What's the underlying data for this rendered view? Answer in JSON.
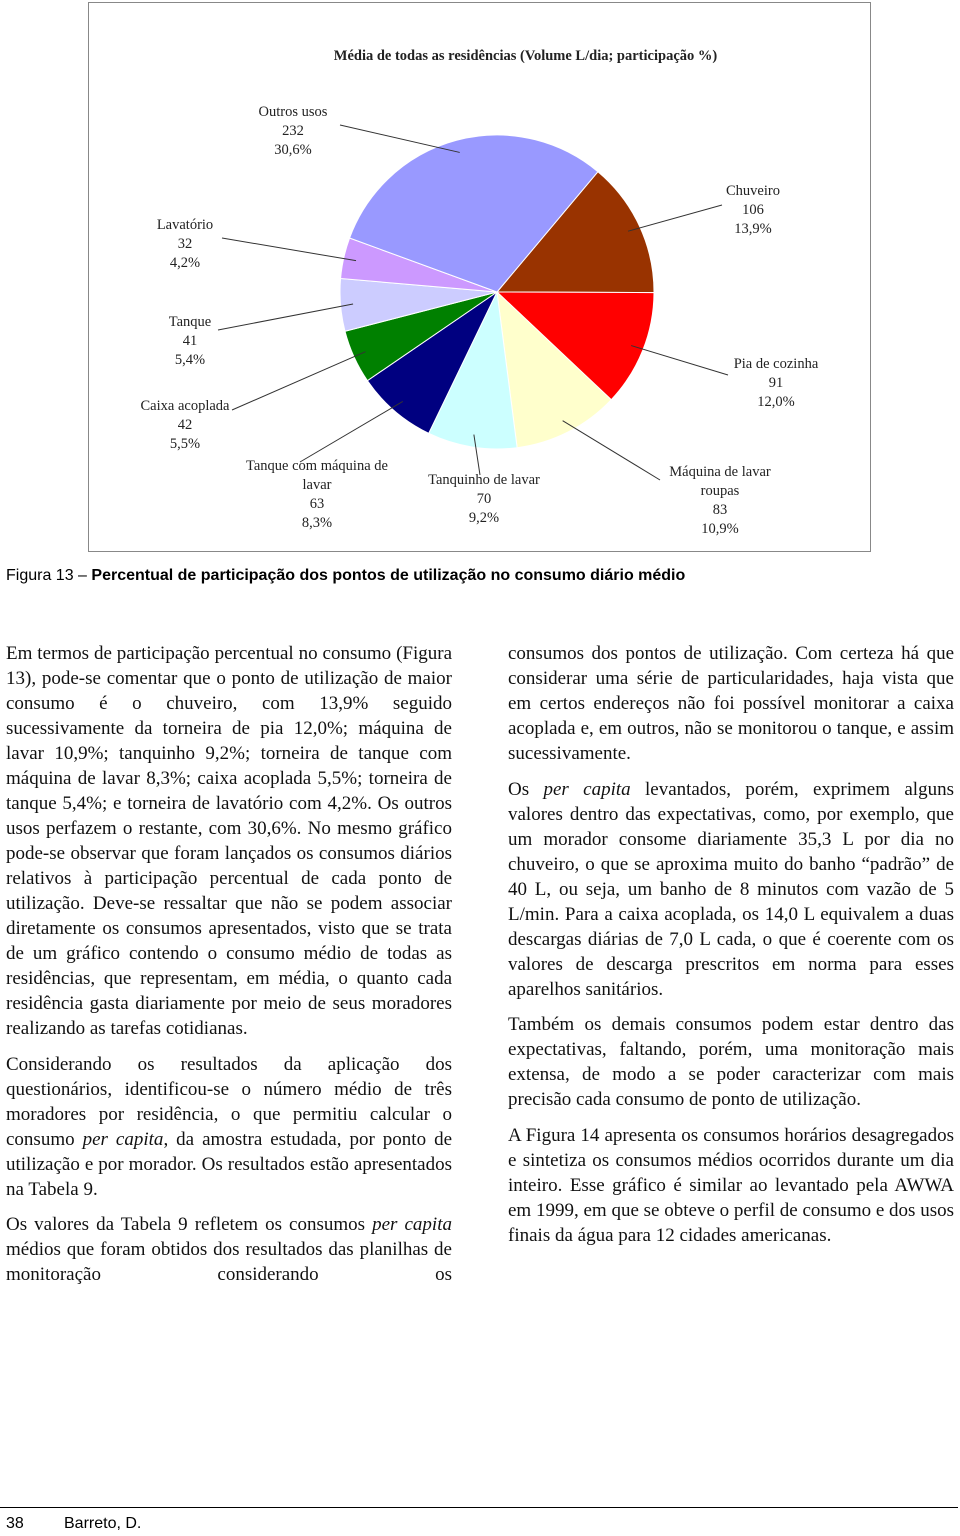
{
  "chart_data": {
    "type": "pie",
    "title": "Média de todas as residências (Volume L/dia; participação %)",
    "categories": [
      "Chuveiro",
      "Pia de cozinha",
      "Máquina de lavar roupas",
      "Tanquinho de lavar",
      "Tanque com máquina de lavar",
      "Caixa acoplada",
      "Tanque",
      "Lavatório",
      "Outros usos"
    ],
    "values": [
      106,
      91,
      83,
      70,
      63,
      42,
      41,
      32,
      232
    ],
    "shares": [
      13.9,
      12.0,
      10.9,
      9.2,
      8.3,
      5.5,
      5.4,
      4.2,
      30.6
    ],
    "share_labels": [
      "13,9%",
      "12,0%",
      "10,9%",
      "9,2%",
      "8,3%",
      "5,5%",
      "5,4%",
      "4,2%",
      "30,6%"
    ],
    "colors": [
      "#993300",
      "#ff0000",
      "#ffffcc",
      "#ccffff",
      "#000080",
      "#008000",
      "#ccccff",
      "#cc99ff",
      "#9999ff"
    ]
  },
  "caption": {
    "label": "Figura 13 –",
    "text": "Percentual de participação dos pontos de utilização no consumo diário médio"
  },
  "body": {
    "left": [
      [
        "Em termos de participação percentual no consumo (Figura 13), pode-se comentar que o ponto de utilização de maior consumo é o chuveiro, com 13,9% seguido sucessivamente da torneira de pia 12,0%; máquina de lavar 10,9%; tanquinho 9,2%; torneira de tanque com máquina de lavar 8,3%; caixa acoplada 5,5%; torneira de tanque 5,4%; e torneira de lavatório com 4,2%. Os outros usos perfazem o restante, com 30,6%. No mesmo gráfico pode-se observar que foram lançados os consumos diários relativos à participação percentual de cada ponto de utilização. Deve-se ressaltar que não se podem associar diretamente os consumos apresentados, visto que se trata de um gráfico contendo o consumo médio de todas as residências, que representam, em média, o quanto cada residência gasta diariamente por meio de seus moradores realizando as tarefas cotidianas."
      ],
      [
        "Considerando os resultados da aplicação dos questionários, identificou-se o número médio de três moradores por residência, o que permitiu calcular o consumo ",
        {
          "italic": "per capita"
        },
        ", da amostra estudada, por ponto de utilização e por morador. Os resultados estão apresentados na Tabela 9."
      ],
      [
        "Os valores da Tabela 9 refletem os consumos ",
        {
          "italic": "per capita"
        },
        " médios que foram obtidos dos resultados das planilhas de monitoração considerando os"
      ]
    ],
    "right": [
      [
        "consumos dos pontos de utilização. Com certeza há que considerar uma série de particularidades, haja vista que em certos endereços não foi possível monitorar a caixa acoplada e, em outros, não se monitorou o tanque, e assim sucessivamente."
      ],
      [
        "Os ",
        {
          "italic": "per capita"
        },
        " levantados, porém, exprimem alguns valores dentro das expectativas, como, por exemplo, que um morador consome diariamente 35,3 L por dia no chuveiro, o que se aproxima muito do banho “padrão” de 40 L, ou seja, um banho de 8 minutos com vazão de 5 L/min. Para a caixa acoplada, os 14,0 L equivalem a duas descargas diárias de 7,0 L cada, o que é coerente com os valores de descarga prescritos em norma para esses aparelhos sanitários."
      ],
      [
        "Também os demais consumos podem estar dentro das expectativas, faltando, porém, uma monitoração mais extensa, de modo a se poder caracterizar com mais precisão cada consumo de ponto de utilização."
      ],
      [
        "A Figura 14 apresenta os consumos horários desagregados e sintetiza os consumos médios ocorridos durante um dia inteiro. Esse gráfico é similar ao levantado pela AWWA em 1999, em que se obteve o perfil de consumo e dos usos finais da água para 12 cidades americanas."
      ]
    ]
  },
  "footer": {
    "page": "38",
    "author": "Barreto, D."
  }
}
